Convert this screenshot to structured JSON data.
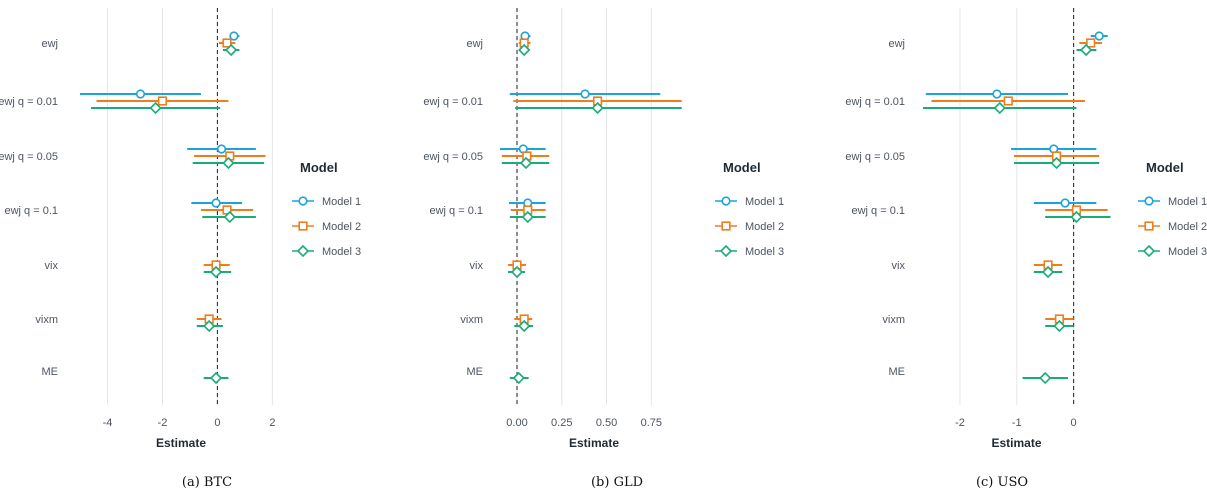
{
  "colors": {
    "Model 1": "#1ba3dd",
    "Model 2": "#f07d1a",
    "Model 3": "#1aab7c",
    "grid": "#e6e6e6",
    "zero_line": "#333333"
  },
  "legend": {
    "title": "Model",
    "entries": [
      "Model 1",
      "Model 2",
      "Model 3"
    ]
  },
  "chart_data": [
    {
      "type": "forest",
      "caption": "(a) BTC",
      "xlabel": "Estimate",
      "xlim": [
        -5.0,
        2.35
      ],
      "xticks": [
        -4,
        -2,
        0,
        2
      ],
      "xtick_labels": [
        "-4",
        "-2",
        "0",
        "2"
      ],
      "zero_line": "dashed",
      "categories": [
        "ewj",
        "ewj q = 0.01",
        "ewj q = 0.05",
        "ewj q = 0.1",
        "vix",
        "vixm",
        "ME"
      ],
      "series": [
        {
          "name": "Model 1",
          "marker": "circle",
          "points": [
            {
              "y": "ewj",
              "est": 0.6,
              "lo": 0.45,
              "hi": 0.8
            },
            {
              "y": "ewj q = 0.01",
              "est": -2.8,
              "lo": -5.0,
              "hi": -0.6
            },
            {
              "y": "ewj q = 0.05",
              "est": 0.15,
              "lo": -1.1,
              "hi": 1.4
            },
            {
              "y": "ewj q = 0.1",
              "est": -0.05,
              "lo": -0.95,
              "hi": 0.9
            }
          ]
        },
        {
          "name": "Model 2",
          "marker": "square",
          "points": [
            {
              "y": "ewj",
              "est": 0.35,
              "lo": 0.05,
              "hi": 0.65
            },
            {
              "y": "ewj q = 0.01",
              "est": -2.0,
              "lo": -4.4,
              "hi": 0.4
            },
            {
              "y": "ewj q = 0.05",
              "est": 0.45,
              "lo": -0.85,
              "hi": 1.75
            },
            {
              "y": "ewj q = 0.1",
              "est": 0.35,
              "lo": -0.6,
              "hi": 1.3
            },
            {
              "y": "vix",
              "est": -0.05,
              "lo": -0.5,
              "hi": 0.45
            },
            {
              "y": "vixm",
              "est": -0.3,
              "lo": -0.75,
              "hi": 0.15
            }
          ]
        },
        {
          "name": "Model 3",
          "marker": "diamond",
          "points": [
            {
              "y": "ewj",
              "est": 0.5,
              "lo": 0.2,
              "hi": 0.8
            },
            {
              "y": "ewj q = 0.01",
              "est": -2.25,
              "lo": -4.6,
              "hi": 0.1
            },
            {
              "y": "ewj q = 0.05",
              "est": 0.4,
              "lo": -0.9,
              "hi": 1.7
            },
            {
              "y": "ewj q = 0.1",
              "est": 0.45,
              "lo": -0.55,
              "hi": 1.4
            },
            {
              "y": "vix",
              "est": -0.05,
              "lo": -0.5,
              "hi": 0.5
            },
            {
              "y": "vixm",
              "est": -0.3,
              "lo": -0.75,
              "hi": 0.2
            },
            {
              "y": "ME",
              "est": -0.05,
              "lo": -0.5,
              "hi": 0.4
            }
          ]
        }
      ]
    },
    {
      "type": "forest",
      "caption": "(b) GLD",
      "xlabel": "Estimate",
      "xlim": [
        -0.095,
        0.955
      ],
      "xticks": [
        0,
        0.25,
        0.5,
        0.75
      ],
      "xtick_labels": [
        "0.00",
        "0.25",
        "0.50",
        "0.75"
      ],
      "zero_line": "dashed",
      "categories": [
        "ewj",
        "ewj q = 0.01",
        "ewj q = 0.05",
        "ewj q = 0.1",
        "vix",
        "vixm",
        "ME"
      ],
      "series": [
        {
          "name": "Model 1",
          "marker": "circle",
          "points": [
            {
              "y": "ewj",
              "est": 0.045,
              "lo": 0.02,
              "hi": 0.075
            },
            {
              "y": "ewj q = 0.01",
              "est": 0.38,
              "lo": -0.04,
              "hi": 0.8
            },
            {
              "y": "ewj q = 0.05",
              "est": 0.035,
              "lo": -0.095,
              "hi": 0.16
            },
            {
              "y": "ewj q = 0.1",
              "est": 0.06,
              "lo": -0.045,
              "hi": 0.16
            }
          ]
        },
        {
          "name": "Model 2",
          "marker": "square",
          "points": [
            {
              "y": "ewj",
              "est": 0.04,
              "lo": 0.01,
              "hi": 0.075
            },
            {
              "y": "ewj q = 0.01",
              "est": 0.45,
              "lo": -0.02,
              "hi": 0.92
            },
            {
              "y": "ewj q = 0.05",
              "est": 0.055,
              "lo": -0.085,
              "hi": 0.18
            },
            {
              "y": "ewj q = 0.1",
              "est": 0.06,
              "lo": -0.035,
              "hi": 0.16
            },
            {
              "y": "vix",
              "est": 0.0,
              "lo": -0.05,
              "hi": 0.05
            },
            {
              "y": "vixm",
              "est": 0.04,
              "lo": -0.015,
              "hi": 0.085
            }
          ]
        },
        {
          "name": "Model 3",
          "marker": "diamond",
          "points": [
            {
              "y": "ewj",
              "est": 0.04,
              "lo": 0.015,
              "hi": 0.07
            },
            {
              "y": "ewj q = 0.01",
              "est": 0.45,
              "lo": -0.01,
              "hi": 0.92
            },
            {
              "y": "ewj q = 0.05",
              "est": 0.05,
              "lo": -0.085,
              "hi": 0.18
            },
            {
              "y": "ewj q = 0.1",
              "est": 0.06,
              "lo": -0.04,
              "hi": 0.16
            },
            {
              "y": "vix",
              "est": 0.0,
              "lo": -0.05,
              "hi": 0.045
            },
            {
              "y": "vixm",
              "est": 0.04,
              "lo": -0.015,
              "hi": 0.09
            },
            {
              "y": "ME",
              "est": 0.01,
              "lo": -0.04,
              "hi": 0.065
            }
          ]
        }
      ]
    },
    {
      "type": "forest",
      "caption": "(c) USO",
      "xlabel": "Estimate",
      "xlim": [
        -2.65,
        0.64
      ],
      "xticks": [
        -2,
        -1,
        0
      ],
      "xtick_labels": [
        "-2",
        "-1",
        "0"
      ],
      "zero_line": "dashed",
      "categories": [
        "ewj",
        "ewj q = 0.01",
        "ewj q = 0.05",
        "ewj q = 0.1",
        "vix",
        "vixm",
        "ME"
      ],
      "series": [
        {
          "name": "Model 1",
          "marker": "circle",
          "points": [
            {
              "y": "ewj",
              "est": 0.45,
              "lo": 0.3,
              "hi": 0.6
            },
            {
              "y": "ewj q = 0.01",
              "est": -1.35,
              "lo": -2.6,
              "hi": -0.1
            },
            {
              "y": "ewj q = 0.05",
              "est": -0.35,
              "lo": -1.1,
              "hi": 0.4
            },
            {
              "y": "ewj q = 0.1",
              "est": -0.15,
              "lo": -0.7,
              "hi": 0.4
            }
          ]
        },
        {
          "name": "Model 2",
          "marker": "square",
          "points": [
            {
              "y": "ewj",
              "est": 0.3,
              "lo": 0.1,
              "hi": 0.5
            },
            {
              "y": "ewj q = 0.01",
              "est": -1.15,
              "lo": -2.5,
              "hi": 0.2
            },
            {
              "y": "ewj q = 0.05",
              "est": -0.3,
              "lo": -1.05,
              "hi": 0.45
            },
            {
              "y": "ewj q = 0.1",
              "est": 0.05,
              "lo": -0.5,
              "hi": 0.6
            },
            {
              "y": "vix",
              "est": -0.45,
              "lo": -0.7,
              "hi": -0.2
            },
            {
              "y": "vixm",
              "est": -0.25,
              "lo": -0.5,
              "hi": 0.0
            }
          ]
        },
        {
          "name": "Model 3",
          "marker": "diamond",
          "points": [
            {
              "y": "ewj",
              "est": 0.22,
              "lo": 0.05,
              "hi": 0.4
            },
            {
              "y": "ewj q = 0.01",
              "est": -1.3,
              "lo": -2.65,
              "hi": 0.05
            },
            {
              "y": "ewj q = 0.05",
              "est": -0.3,
              "lo": -1.05,
              "hi": 0.45
            },
            {
              "y": "ewj q = 0.1",
              "est": 0.05,
              "lo": -0.5,
              "hi": 0.65
            },
            {
              "y": "vix",
              "est": -0.45,
              "lo": -0.7,
              "hi": -0.2
            },
            {
              "y": "vixm",
              "est": -0.25,
              "lo": -0.5,
              "hi": 0.0
            },
            {
              "y": "ME",
              "est": -0.5,
              "lo": -0.9,
              "hi": -0.1
            }
          ]
        }
      ]
    }
  ]
}
